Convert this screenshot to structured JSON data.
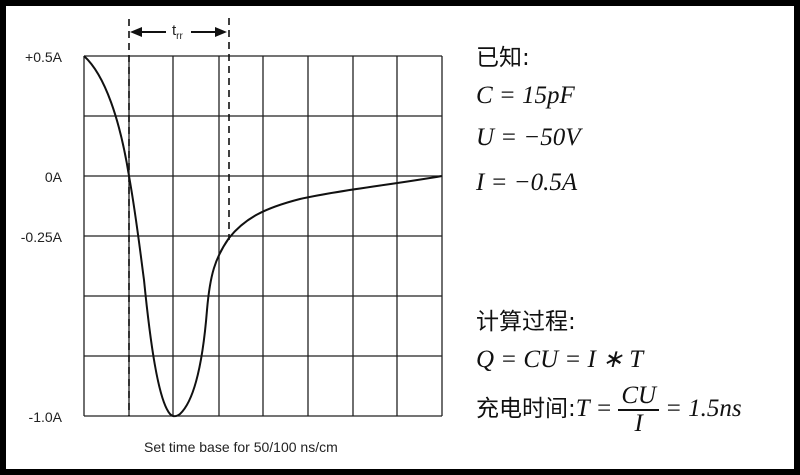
{
  "diagram": {
    "y_labels": [
      "+0.5A",
      "0A",
      "-0.25A",
      "-1.0A"
    ],
    "trr_label": "t",
    "trr_subscript": "rr",
    "x_caption": "Set time base for 50/100 ns/cm"
  },
  "notes": {
    "known_title": "已知:",
    "c_eq": "C = 15pF",
    "u_eq": "U = −50V",
    "i_eq": "I = −0.5A",
    "calc_title": "计算过程:",
    "q_eq": "Q = CU = I ∗ T",
    "charge_time_label": "充电时间:",
    "t_lhs": "T =",
    "t_num": "CU",
    "t_den": "I",
    "t_rhs": "= 1.5ns"
  }
}
